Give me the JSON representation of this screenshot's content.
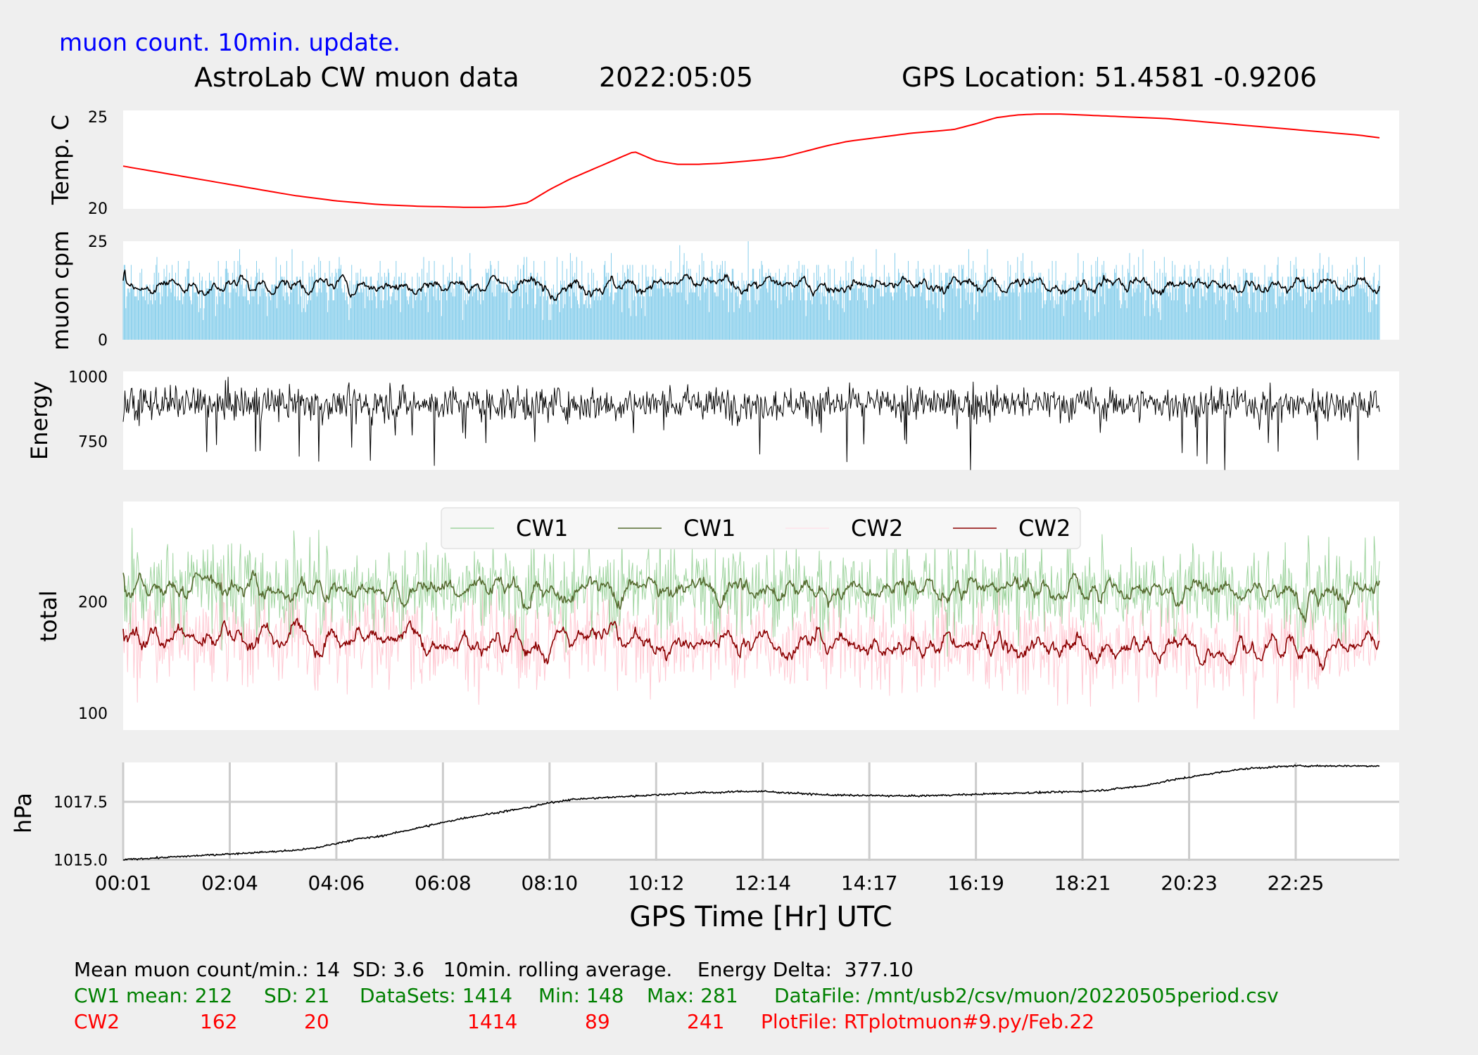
{
  "header": {
    "subtitle": "muon count.  10min. update.",
    "title": "AstroLab CW muon data",
    "date": "2022:05:05",
    "gps_location": "GPS Location: 51.4581   -0.9206"
  },
  "colors": {
    "background": "#efefef",
    "panel": "#ffffff",
    "temperature": "#ff0000",
    "muon_bars": "#87ceeb",
    "dark_line": "#000000",
    "cw1_raw": "#9fd49f",
    "cw1_avg": "#556b2f",
    "cw2_raw": "#ffc8d2",
    "cw2_avg": "#8b0000",
    "grid": "#cccccc",
    "title_blue": "#0000ff",
    "stats_green": "#008000",
    "stats_red": "#ff0000"
  },
  "chart_data": [
    {
      "type": "line",
      "ylabel": "Temp. C",
      "yticks": [
        20,
        25
      ],
      "ylim": [
        20,
        25
      ],
      "series": [
        {
          "values": [
            22.3,
            22.1,
            21.9,
            21.7,
            21.5,
            21.3,
            21.1,
            20.9,
            20.7,
            20.55,
            20.4,
            20.3,
            20.2,
            20.15,
            20.1,
            20.08,
            20.05,
            20.05,
            20.1,
            20.3,
            21.0,
            21.6,
            22.1,
            22.6,
            23.1,
            22.6,
            22.4,
            22.4,
            22.45,
            22.55,
            22.65,
            22.8,
            23.1,
            23.4,
            23.65,
            23.8,
            23.95,
            24.1,
            24.2,
            24.3,
            24.6,
            24.95,
            25.1,
            25.15,
            25.15,
            25.1,
            25.05,
            25.0,
            24.95,
            24.9,
            24.8,
            24.7,
            24.6,
            24.5,
            24.4,
            24.3,
            24.2,
            24.1,
            24.0,
            23.85
          ]
        }
      ]
    },
    {
      "type": "bar",
      "ylabel": "muon cpm",
      "yticks": [
        0,
        25
      ],
      "ylim": [
        0,
        25
      ],
      "n_points": 1414,
      "mean": 14,
      "sd": 3.6,
      "max": 25,
      "rolling_average_minutes": 10
    },
    {
      "type": "line",
      "ylabel": "Energy",
      "yticks": [
        750,
        1000
      ],
      "ylim": [
        640,
        1020
      ],
      "n_points": 1414,
      "mean": 895,
      "min": 640,
      "max": 1010,
      "energy_delta": 377.1
    },
    {
      "type": "line",
      "ylabel": "total",
      "yticks": [
        100,
        200
      ],
      "ylim": [
        85,
        290
      ],
      "legend": {
        "placement": "top-center",
        "entries": [
          "CW1",
          "CW1",
          "CW2",
          "CW2"
        ]
      },
      "series": [
        {
          "name": "CW1",
          "style": "raw",
          "mean": 212,
          "sd": 21,
          "datasets": 1414,
          "min": 148,
          "max": 281
        },
        {
          "name": "CW1",
          "style": "rolling-average",
          "mean": 212
        },
        {
          "name": "CW2",
          "style": "raw",
          "mean": 162,
          "sd": 20,
          "datasets": 1414,
          "min": 89,
          "max": 241
        },
        {
          "name": "CW2",
          "style": "rolling-average",
          "mean": 162
        }
      ]
    },
    {
      "type": "line",
      "ylabel": "hPa",
      "yticks": [
        1015.0,
        1017.5
      ],
      "ylim": [
        1014.95,
        1019.2
      ],
      "grid": true,
      "xlabel": "GPS Time  [Hr] UTC",
      "xticks": [
        "00:01",
        "02:04",
        "04:06",
        "06:08",
        "08:10",
        "10:12",
        "12:14",
        "14:17",
        "16:19",
        "18:21",
        "20:23",
        "22:25"
      ],
      "series": [
        {
          "values": [
            1015.0,
            1015.05,
            1015.1,
            1015.15,
            1015.2,
            1015.25,
            1015.3,
            1015.35,
            1015.4,
            1015.5,
            1015.7,
            1015.9,
            1016.0,
            1016.2,
            1016.4,
            1016.6,
            1016.8,
            1016.95,
            1017.1,
            1017.25,
            1017.45,
            1017.6,
            1017.65,
            1017.7,
            1017.75,
            1017.8,
            1017.85,
            1017.9,
            1017.9,
            1017.95,
            1017.95,
            1017.9,
            1017.85,
            1017.8,
            1017.78,
            1017.77,
            1017.76,
            1017.75,
            1017.77,
            1017.8,
            1017.82,
            1017.85,
            1017.88,
            1017.9,
            1017.92,
            1017.95,
            1018.0,
            1018.1,
            1018.2,
            1018.4,
            1018.55,
            1018.7,
            1018.85,
            1018.95,
            1019.0,
            1019.05,
            1019.05,
            1019.05,
            1019.05,
            1019.05
          ]
        }
      ]
    }
  ],
  "footer": {
    "summary": "Mean muon count/min.: 14  SD: 3.6   10min. rolling average.    Energy Delta:  377.10",
    "cw1": {
      "label": "CW1 mean: 212",
      "sd": "SD: 21",
      "datasets": "DataSets: 1414",
      "min": "Min: 148",
      "max": "Max: 281",
      "file": "DataFile: /mnt/usb2/csv/muon/20220505period.csv"
    },
    "cw2": {
      "label": "CW2",
      "mean": "162",
      "sd": "20",
      "datasets": "1414",
      "min": "89",
      "max": "241",
      "file": "PlotFile: RTplotmuon#9.py/Feb.22"
    }
  }
}
